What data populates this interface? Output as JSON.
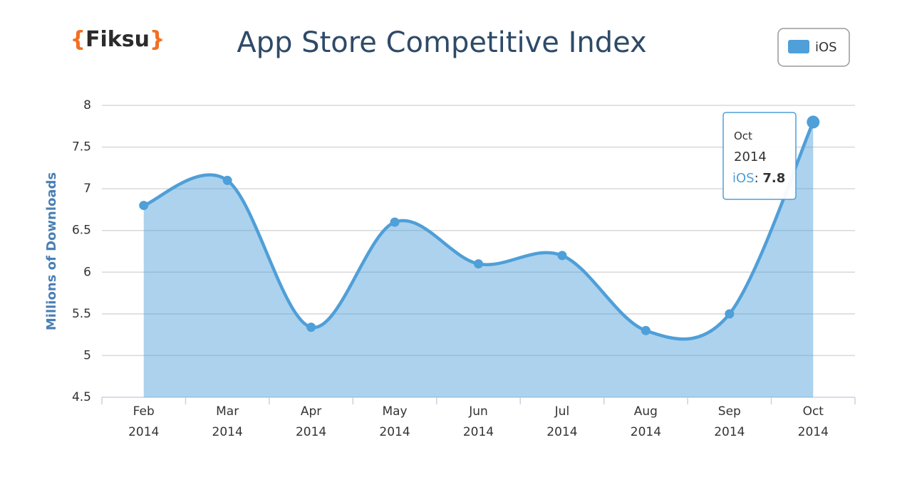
{
  "logo": "{Fiksu}",
  "chart_data": {
    "type": "area",
    "title": "App Store Competitive Index",
    "y_label": "Millions of Downloads",
    "categories": [
      "Feb 2014",
      "Mar 2014",
      "Apr 2014",
      "May 2014",
      "Jun 2014",
      "Jul 2014",
      "Aug 2014",
      "Sep 2014",
      "Oct 2014"
    ],
    "series": [
      {
        "name": "iOS",
        "color": "#4f9fd8",
        "values": [
          6.8,
          7.1,
          5.34,
          6.6,
          6.1,
          6.2,
          5.3,
          5.5,
          7.8
        ]
      }
    ],
    "ylim": [
      4.5,
      8
    ],
    "yticks": [
      4.5,
      5,
      5.5,
      6,
      6.5,
      7,
      7.5,
      8
    ],
    "grid": true,
    "legend": "top-right"
  }
}
